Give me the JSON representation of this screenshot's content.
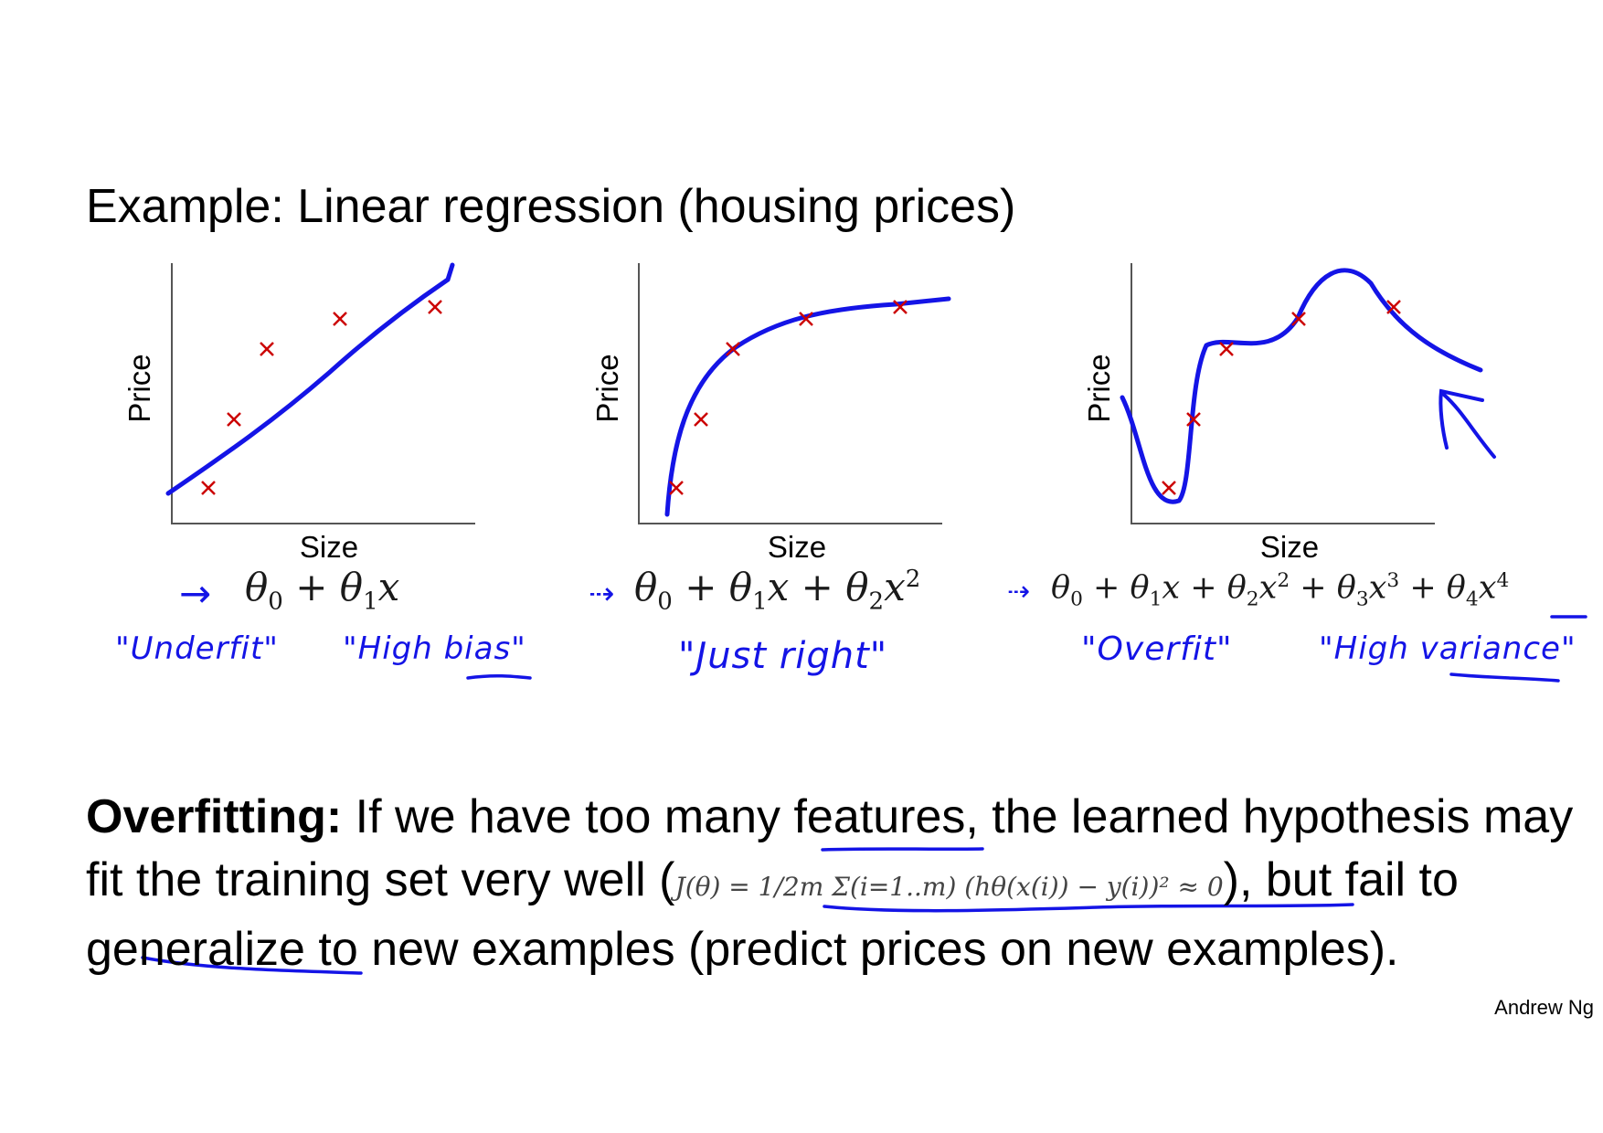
{
  "title": "Example: Linear regression (housing prices)",
  "chart_data": [
    {
      "type": "scatter",
      "xlabel": "Size",
      "ylabel": "Price",
      "hypothesis": "θ0 + θ1x",
      "notes": [
        "\"Underfit\"",
        "\"High bias\""
      ]
    },
    {
      "type": "scatter",
      "xlabel": "Size",
      "ylabel": "Price",
      "hypothesis": "θ0 + θ1x + θ2x²",
      "notes": [
        "\"Just right\""
      ]
    },
    {
      "type": "scatter",
      "xlabel": "Size",
      "ylabel": "Price",
      "hypothesis": "θ0 + θ1x + θ2x² + θ3x³ + θ4x⁴",
      "notes": [
        "\"Overfit\"",
        "\"High variance\""
      ]
    }
  ],
  "text": {
    "lead": "Overfitting:",
    "part1": "If we have too many features, the learned hypothesis may fit the training set very well (",
    "equation": "J(θ) = 1/2m Σ(i=1..m) (hθ(x(i)) − y(i))² ≈ 0",
    "part2": "), but fail to generalize to new examples (predict prices on new examples)."
  },
  "author": "Andrew Ng",
  "colors": {
    "ink": "#1414e6",
    "marker": "#cc0000",
    "axis": "#555555"
  }
}
